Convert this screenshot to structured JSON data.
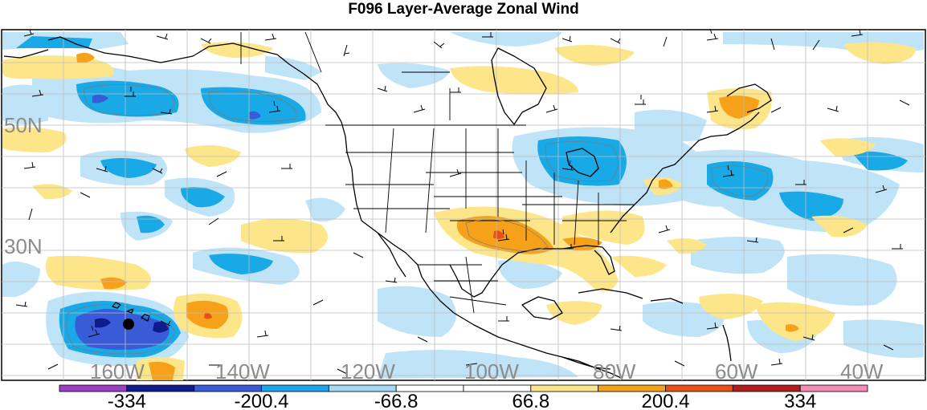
{
  "title": "F096 Layer-Average Zonal Wind",
  "lat_labels": [
    "50N",
    "30N"
  ],
  "lon_labels": [
    "160W",
    "140W",
    "120W",
    "100W",
    "80W",
    "60W",
    "40W"
  ],
  "colorbar": {
    "colors": [
      "#9b3fc4",
      "#101c8c",
      "#3a5bd8",
      "#1aa6e8",
      "#a5d9f5",
      "#ffffff",
      "#ffffff",
      "#fde68a",
      "#f5a21a",
      "#e94f16",
      "#b31d1d",
      "#f58cb8"
    ],
    "labels": [
      "-334",
      "-200.4",
      "-66.8",
      "66.8",
      "200.4",
      "334"
    ]
  },
  "colors": {
    "map_line": "#000000",
    "grid": "#bdbdbd",
    "light_blue": "#bfe3f7",
    "mid_blue": "#19a9e6",
    "dark_blue": "#3a5bd8",
    "navy": "#101c8c",
    "light_yellow": "#fde68a",
    "orange": "#f5a21a",
    "red_orange": "#e94f16"
  }
}
